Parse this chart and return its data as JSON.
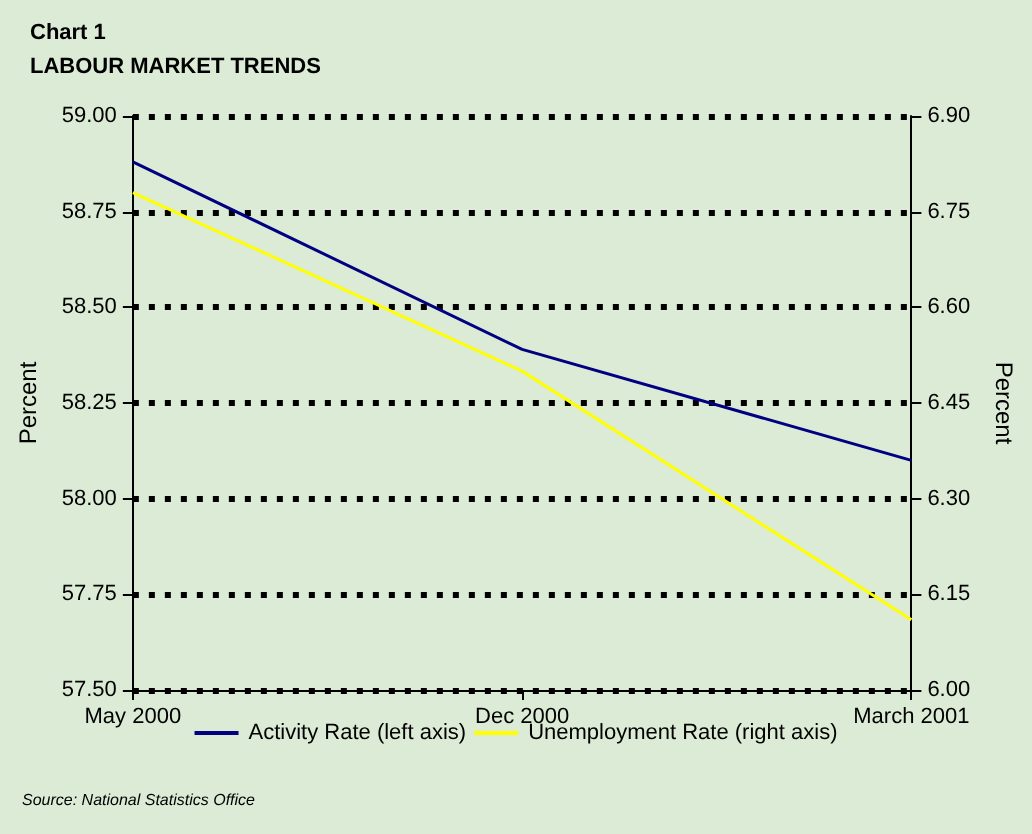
{
  "chart_data": {
    "type": "line",
    "title": "Chart 1",
    "subtitle": "LABOUR MARKET TRENDS",
    "ylabel": "Percent",
    "y2label": "Percent",
    "categories": [
      "May 2000",
      "Dec 2000",
      "March 2001"
    ],
    "series": [
      {
        "name": "Activity Rate (left axis)",
        "color": "#000080",
        "values": [
          58.88,
          58.39,
          58.1
        ]
      },
      {
        "name": "Unemployment Rate (right axis)",
        "color": "#ffff00",
        "axis": "y2",
        "values": [
          6.78,
          6.5,
          6.11
        ]
      }
    ],
    "ylim": [
      57.5,
      59
    ],
    "yticks": [
      {
        "value": 57.5,
        "label": "57.50"
      },
      {
        "value": 57.75,
        "label": "57.75"
      },
      {
        "value": 58,
        "label": "58.00"
      },
      {
        "value": 58.25,
        "label": "58.25"
      },
      {
        "value": 58.5,
        "label": "58.50"
      },
      {
        "value": 58.75,
        "label": "58.75"
      },
      {
        "value": 59,
        "label": "59.00"
      }
    ],
    "y2lim": [
      6,
      6.9
    ],
    "y2ticks": [
      {
        "value": 6,
        "label": "6.00"
      },
      {
        "value": 6.15,
        "label": "6.15"
      },
      {
        "value": 6.3,
        "label": "6.30"
      },
      {
        "value": 6.45,
        "label": "6.45"
      },
      {
        "value": 6.6,
        "label": "6.60"
      },
      {
        "value": 6.75,
        "label": "6.75"
      },
      {
        "value": 6.9,
        "label": "6.90"
      }
    ],
    "grid": "y",
    "legend": "bottom",
    "marker": "none",
    "line_style": "solid",
    "annotations": [
      "Source: National Statistics Office"
    ]
  }
}
